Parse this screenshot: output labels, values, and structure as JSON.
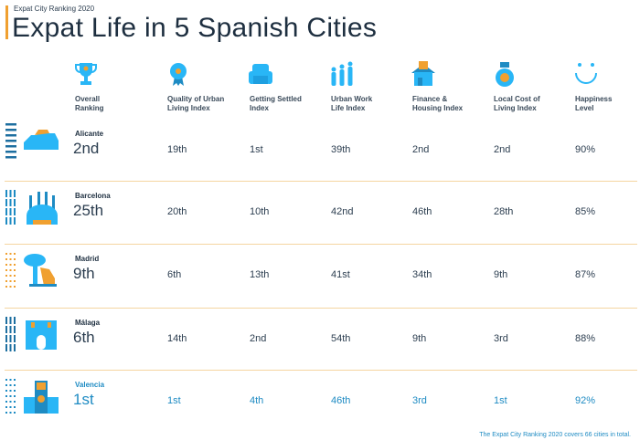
{
  "header": {
    "subtitle": "Expat City Ranking 2020",
    "title": "Expat Life in 5 Spanish Cities"
  },
  "columns": [
    {
      "label1": "Overall",
      "label2": "Ranking",
      "icon": "trophy-icon"
    },
    {
      "label1": "Quality of Urban",
      "label2": "Living Index",
      "icon": "rosette-icon"
    },
    {
      "label1": "Getting Settled",
      "label2": "Index",
      "icon": "armchair-icon"
    },
    {
      "label1": "Urban Work",
      "label2": "Life Index",
      "icon": "people-icon"
    },
    {
      "label1": "Finance &",
      "label2": "Housing Index",
      "icon": "house-money-icon"
    },
    {
      "label1": "Local Cost of",
      "label2": "Living Index",
      "icon": "money-bag-icon"
    },
    {
      "label1": "Happiness",
      "label2": "Level",
      "icon": "smiley-icon"
    }
  ],
  "rows": [
    {
      "city": "Alicante",
      "rank": "2nd",
      "values": [
        "19th",
        "1st",
        "39th",
        "2nd",
        "2nd",
        "90%"
      ]
    },
    {
      "city": "Barcelona",
      "rank": "25th",
      "values": [
        "20th",
        "10th",
        "42nd",
        "46th",
        "28th",
        "85%"
      ]
    },
    {
      "city": "Madrid",
      "rank": "9th",
      "values": [
        "6th",
        "13th",
        "41st",
        "34th",
        "9th",
        "87%"
      ]
    },
    {
      "city": "Málaga",
      "rank": "6th",
      "values": [
        "14th",
        "2nd",
        "54th",
        "9th",
        "3rd",
        "88%"
      ]
    },
    {
      "city": "Valencia",
      "rank": "1st",
      "values": [
        "1st",
        "4th",
        "46th",
        "3rd",
        "1st",
        "92%"
      ]
    }
  ],
  "footer": "The Expat City Ranking 2020 covers 66 cities in total.",
  "colors": {
    "accent": "#f0a030",
    "blue": "#29b6f6",
    "navy": "#1e2f40"
  }
}
